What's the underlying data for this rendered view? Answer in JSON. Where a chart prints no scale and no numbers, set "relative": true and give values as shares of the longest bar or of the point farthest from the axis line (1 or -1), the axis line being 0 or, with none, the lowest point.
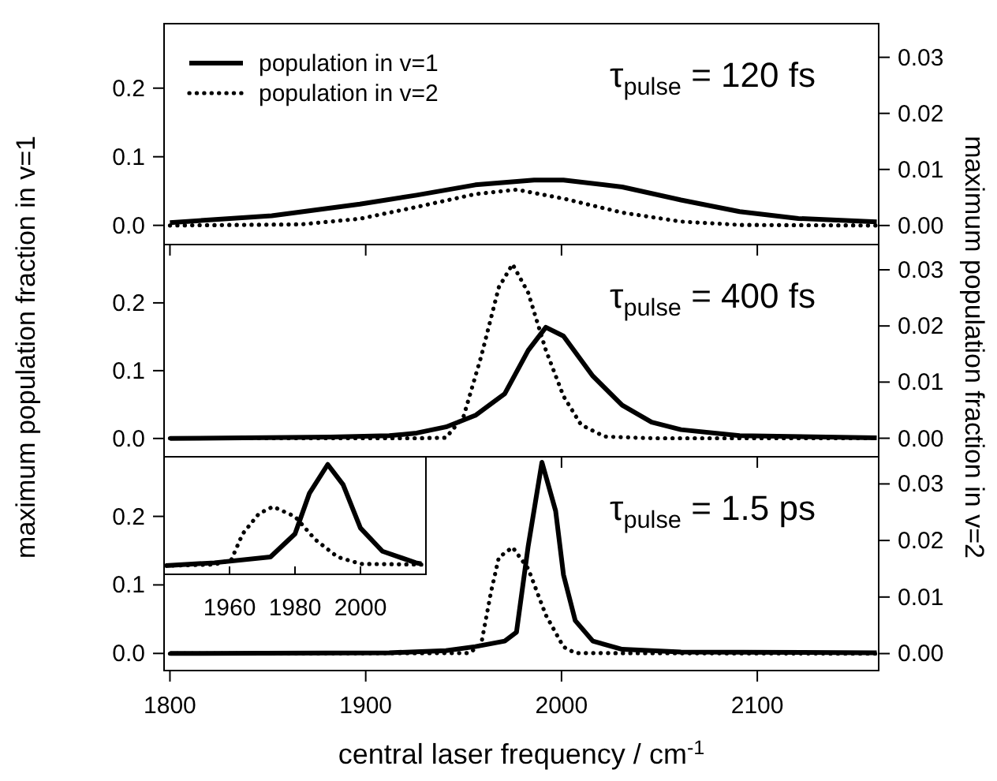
{
  "chart_data": [
    {
      "type": "line",
      "annotations": [
        "τ$_{pulse}$ = 120 fs"
      ],
      "legend": "top left",
      "tick_labels": "y",
      "xlim": [
        1797,
        2162
      ],
      "xticks": [
        1800,
        1900,
        2000,
        2100
      ],
      "ylim": [
        -0.028,
        0.294
      ],
      "yticks": [
        {
          "value": 0,
          "label": "0.0"
        },
        {
          "value": 0.1,
          "label": "0.1"
        },
        {
          "value": 0.2,
          "label": "0.2"
        }
      ],
      "y2lim": [
        -0.0034,
        0.036
      ],
      "y2ticks": [
        {
          "value": 0,
          "label": "0.00"
        },
        {
          "value": 0.01,
          "label": "0.01"
        },
        {
          "value": 0.02,
          "label": "0.02"
        },
        {
          "value": 0.03,
          "label": "0.03"
        }
      ],
      "series": [
        {
          "name": "population in v=1",
          "color": "#000000",
          "line_style": "solid",
          "x": [
            1800,
            1852,
            1897,
            1926,
            1956,
            1986,
            2001,
            2031,
            2061,
            2091,
            2121,
            2161
          ],
          "values": [
            0.004,
            0.014,
            0.031,
            0.044,
            0.059,
            0.066,
            0.066,
            0.056,
            0.037,
            0.02,
            0.01,
            0.005
          ]
        },
        {
          "name": "population in v=2",
          "color": "#000000",
          "line_style": "dotted",
          "axis": "y2",
          "x": [
            1800,
            1867,
            1897,
            1926,
            1956,
            1977,
            2001,
            2031,
            2061,
            2091,
            2161
          ],
          "values": [
            0,
            0.0002,
            0.0012,
            0.0033,
            0.0056,
            0.0064,
            0.0048,
            0.0023,
            0.0007,
            0.0001,
            0
          ]
        }
      ]
    },
    {
      "type": "line",
      "annotations": [
        "τ$_{pulse}$ = 400 fs"
      ],
      "ylabel": "maximum population fraction in v=1",
      "y2label": "maximum population fraction in v=2",
      "tick_labels": "y",
      "xlim": [
        1797,
        2162
      ],
      "xticks": [
        1800,
        1900,
        2000,
        2100
      ],
      "ylim": [
        -0.027,
        0.286
      ],
      "yticks": [
        {
          "value": 0,
          "label": "0.0"
        },
        {
          "value": 0.1,
          "label": "0.1"
        },
        {
          "value": 0.2,
          "label": "0.2"
        }
      ],
      "y2lim": [
        -0.0033,
        0.0345
      ],
      "y2ticks": [
        {
          "value": 0,
          "label": "0.00"
        },
        {
          "value": 0.01,
          "label": "0.01"
        },
        {
          "value": 0.02,
          "label": "0.02"
        },
        {
          "value": 0.03,
          "label": "0.03"
        }
      ],
      "series": [
        {
          "color": "#000000",
          "line_style": "solid",
          "x": [
            1800,
            1882,
            1912,
            1926,
            1941,
            1956,
            1971,
            1983,
            1992,
            2001,
            2016,
            2031,
            2046,
            2061,
            2091,
            2161
          ],
          "values": [
            0,
            0.002,
            0.004,
            0.008,
            0.017,
            0.034,
            0.066,
            0.13,
            0.164,
            0.151,
            0.092,
            0.049,
            0.024,
            0.013,
            0.004,
            0.001
          ]
        },
        {
          "color": "#000000",
          "line_style": "dotted",
          "axis": "y2",
          "x": [
            1800,
            1926,
            1941,
            1950,
            1959,
            1968,
            1975,
            1983,
            1992,
            2001,
            2010,
            2022,
            2046,
            2161
          ],
          "values": [
            0,
            0,
            0.0001,
            0.0039,
            0.0146,
            0.0269,
            0.031,
            0.0259,
            0.0157,
            0.0075,
            0.0024,
            0.0003,
            0,
            0
          ]
        }
      ]
    },
    {
      "type": "line",
      "annotations": [
        "τ$_{pulse}$ = 1.5 ps"
      ],
      "xlabel": "central laser frequency / cm$^{-1}$",
      "xlim": [
        1797,
        2162
      ],
      "xticks": [
        1800,
        1900,
        2000,
        2100
      ],
      "ylim": [
        -0.025,
        0.287
      ],
      "yticks": [
        {
          "value": 0,
          "label": "0.0"
        },
        {
          "value": 0.1,
          "label": "0.1"
        },
        {
          "value": 0.2,
          "label": "0.2"
        }
      ],
      "y2lim": [
        -0.003,
        0.0348
      ],
      "y2ticks": [
        {
          "value": 0,
          "label": "0.00"
        },
        {
          "value": 0.01,
          "label": "0.01"
        },
        {
          "value": 0.02,
          "label": "0.02"
        },
        {
          "value": 0.03,
          "label": "0.03"
        }
      ],
      "series": [
        {
          "color": "#000000",
          "line_style": "solid",
          "x": [
            1800,
            1912,
            1941,
            1956,
            1971,
            1977,
            1983,
            1990,
            1997,
            2001,
            2007,
            2016,
            2031,
            2061,
            2161
          ],
          "values": [
            0,
            0.001,
            0.004,
            0.01,
            0.018,
            0.031,
            0.157,
            0.279,
            0.208,
            0.115,
            0.048,
            0.018,
            0.006,
            0.002,
            0.001
          ]
        },
        {
          "color": "#000000",
          "line_style": "dotted",
          "axis": "y2",
          "x": [
            1800,
            1953,
            1959,
            1964,
            1968,
            1975,
            1983,
            1992,
            2001,
            2007,
            2161
          ],
          "values": [
            0,
            0.0001,
            0.0017,
            0.0109,
            0.017,
            0.0188,
            0.015,
            0.0068,
            0.0012,
            0.0001,
            0
          ]
        }
      ]
    },
    {
      "type": "line",
      "relative": true,
      "tick_labels": "x",
      "xlim": [
        1940,
        2020
      ],
      "xticks": [
        1960,
        1980,
        2000
      ],
      "series": [
        {
          "color": "#000000",
          "line_style": "solid",
          "x": [
            1940.5,
            1955.4,
            1972.5,
            1980,
            1984.4,
            1990,
            1994.7,
            2000,
            2006.7,
            2016.9,
            2018.6
          ],
          "values": [
            0.079,
            0.105,
            0.158,
            0.368,
            0.737,
            1,
            0.816,
            0.421,
            0.21,
            0.105,
            0.095
          ]
        },
        {
          "color": "#000000",
          "line_style": "dotted",
          "x": [
            1940.5,
            1955.4,
            1960.5,
            1964,
            1969,
            1973.3,
            1980,
            1986.2,
            1993,
            2000,
            2018.6
          ],
          "values": [
            0.079,
            0.089,
            0.13,
            0.368,
            0.553,
            0.616,
            0.526,
            0.316,
            0.158,
            0.095,
            0.089
          ]
        }
      ]
    }
  ]
}
